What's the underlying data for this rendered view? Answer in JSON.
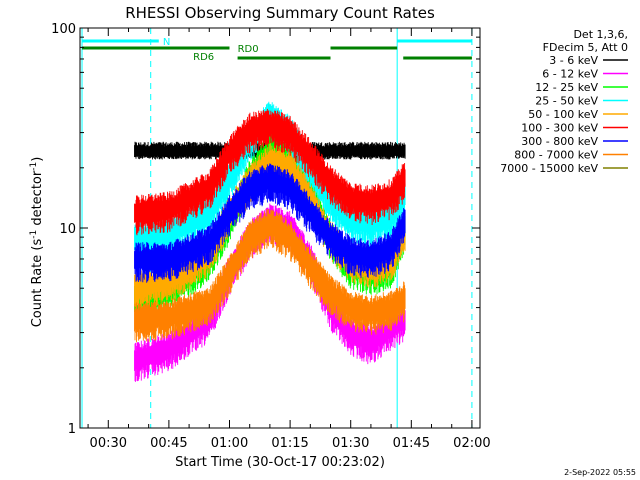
{
  "chart_data": {
    "type": "line",
    "title": "RHESSI Observing Summary Count Rates",
    "xlabel": "Start Time (30-Oct-17 00:23:02)",
    "ylabel": "Count Rate (s",
    "ylabel_sup": "-1",
    "ylabel_tail": " detector",
    "ylabel_sup2": "-1",
    "ylabel_close": ")",
    "yscale": "log",
    "ylim": [
      1,
      100
    ],
    "xlim_min": [
      23.0,
      122.0
    ],
    "grid": false,
    "legend_position": "right",
    "x_ticks": [
      {
        "value": 30,
        "label": "00:30"
      },
      {
        "value": 45,
        "label": "00:45"
      },
      {
        "value": 60,
        "label": "01:00"
      },
      {
        "value": 75,
        "label": "01:15"
      },
      {
        "value": 90,
        "label": "01:30"
      },
      {
        "value": 105,
        "label": "01:45"
      },
      {
        "value": 120,
        "label": "02:00"
      }
    ],
    "y_ticks": [
      {
        "value": 1,
        "label": "1"
      },
      {
        "value": 10,
        "label": "10"
      },
      {
        "value": 100,
        "label": "100"
      }
    ],
    "header_lines": [
      "Det 1,3,6,",
      "FDecim 5, Att 0"
    ],
    "series": [
      {
        "name": "3 - 6 keV",
        "color": "#000000",
        "start": 36.5,
        "end": 103.5,
        "x": [
          36.5,
          45,
          55,
          60,
          65,
          70,
          75,
          85,
          95,
          100,
          103.5
        ],
        "y": [
          25,
          25,
          25,
          25,
          25,
          25,
          25,
          25,
          25,
          25,
          25
        ]
      },
      {
        "name": "6 - 12 keV",
        "color": "#ff00ff",
        "start": 36.5,
        "end": 103.5,
        "x": [
          36.5,
          45,
          55,
          60,
          65,
          70,
          75,
          80,
          85,
          90,
          95,
          100,
          103.5
        ],
        "y": [
          2.2,
          2.5,
          3.5,
          6,
          9,
          11,
          10,
          7,
          4,
          3,
          2.7,
          3.2,
          3.5
        ]
      },
      {
        "name": "12 - 25 keV",
        "color": "#00ff00",
        "start": 36.5,
        "end": 103.5,
        "x": [
          36.5,
          45,
          55,
          60,
          65,
          70,
          75,
          80,
          85,
          90,
          95,
          100,
          103.5
        ],
        "y": [
          4.5,
          5,
          7,
          11,
          18,
          25,
          22,
          15,
          9,
          6.5,
          6,
          6.5,
          10
        ]
      },
      {
        "name": "25 - 50 keV",
        "color": "#00ffff",
        "start": 36.5,
        "end": 103.5,
        "x": [
          36.5,
          45,
          55,
          60,
          65,
          70,
          75,
          80,
          85,
          90,
          95,
          100,
          103.5
        ],
        "y": [
          9,
          9.5,
          12,
          18,
          28,
          36,
          30,
          20,
          14,
          11,
          10.5,
          11.5,
          15
        ]
      },
      {
        "name": "50 - 100 keV",
        "color": "#ffaa00",
        "start": 36.5,
        "end": 103.5,
        "x": [
          36.5,
          45,
          55,
          60,
          65,
          70,
          75,
          80,
          85,
          90,
          95,
          100,
          103.5
        ],
        "y": [
          5,
          5.5,
          7.5,
          12,
          17,
          22,
          20,
          14,
          9,
          7,
          6.5,
          7,
          10
        ]
      },
      {
        "name": "100 - 300 keV",
        "color": "#ff0000",
        "start": 36.5,
        "end": 103.5,
        "x": [
          36.5,
          45,
          55,
          60,
          65,
          70,
          75,
          80,
          85,
          90,
          95,
          100,
          103.5
        ],
        "y": [
          12,
          12.5,
          16,
          24,
          31,
          33,
          30,
          23,
          17,
          14,
          13.5,
          14.5,
          18
        ]
      },
      {
        "name": "300 - 800 keV",
        "color": "#0000ff",
        "start": 36.5,
        "end": 103.5,
        "x": [
          36.5,
          45,
          55,
          60,
          65,
          70,
          75,
          80,
          85,
          90,
          95,
          100,
          103.5
        ],
        "y": [
          7,
          7,
          8.5,
          12,
          16,
          17.5,
          16,
          12,
          9,
          7.5,
          7.2,
          8,
          11
        ]
      },
      {
        "name": "800 - 7000 keV",
        "color": "#ff8000",
        "start": 36.5,
        "end": 103.5,
        "x": [
          36.5,
          45,
          55,
          60,
          65,
          70,
          75,
          80,
          85,
          90,
          95,
          100,
          103.5
        ],
        "y": [
          3.5,
          3.6,
          4.2,
          6,
          9,
          10.5,
          9,
          6.5,
          4.8,
          4,
          3.8,
          4,
          4.5
        ]
      },
      {
        "name": "7000 - 15000 keV",
        "color": "#808000",
        "start": 36.5,
        "end": 103.5,
        "x": [
          36.5,
          103.5
        ],
        "y": [
          1,
          1
        ]
      }
    ],
    "annotations": {
      "attenuator_label": "N",
      "rd0_label": "RD0",
      "rd6_label": "RD6",
      "attenuator_segments": [
        [
          23.5,
          42.5
        ],
        [
          101.5,
          120
        ]
      ],
      "rd0_segments": [
        [
          23.5,
          60
        ],
        [
          85,
          101.5
        ]
      ],
      "rd6_segments": [
        [
          62,
          85
        ],
        [
          103,
          120
        ]
      ],
      "solid_vlines": [
        23.5,
        101.5
      ],
      "dashed_vlines": [
        40.5,
        120
      ]
    },
    "footer": "2-Sep-2022 05:55"
  }
}
